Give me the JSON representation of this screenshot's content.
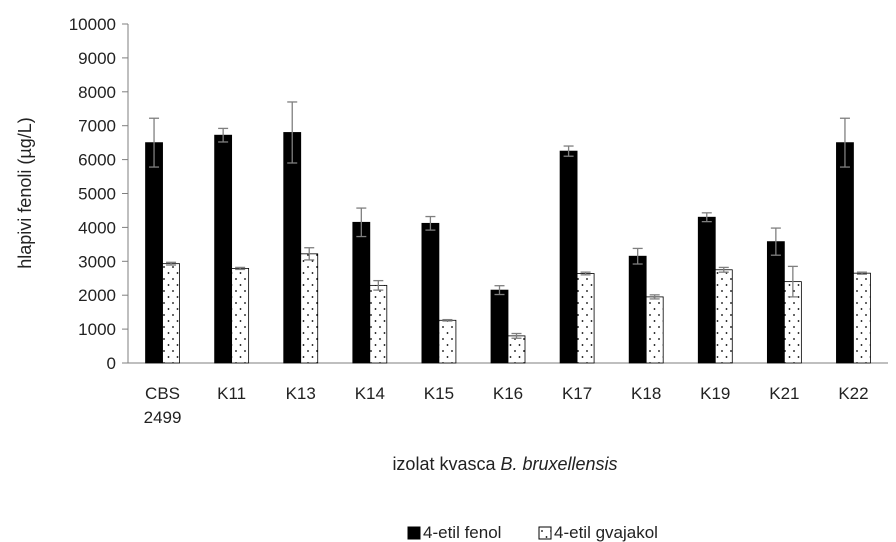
{
  "chart_data": {
    "type": "bar",
    "title": "",
    "ylabel": "hlapivi fenoli (µg/L)",
    "xlabel_prefix": "izolat kvasca ",
    "xlabel_italic": "B. bruxellensis",
    "categories": [
      [
        "CBS",
        "2499"
      ],
      [
        "K11"
      ],
      [
        "K13"
      ],
      [
        "K14"
      ],
      [
        "K15"
      ],
      [
        "K16"
      ],
      [
        "K17"
      ],
      [
        "K18"
      ],
      [
        "K19"
      ],
      [
        "K21"
      ],
      [
        "K22"
      ]
    ],
    "ylim": [
      0,
      10000
    ],
    "yticks": [
      0,
      1000,
      2000,
      3000,
      4000,
      5000,
      6000,
      7000,
      8000,
      9000,
      10000
    ],
    "grid": false,
    "legend_position": "bottom-center",
    "series": [
      {
        "name": "4-etil fenol",
        "fill": "#000000",
        "pattern": "solid",
        "values": [
          6500,
          6720,
          6800,
          4150,
          4120,
          2150,
          6250,
          3150,
          4300,
          3580,
          6500
        ],
        "errors": [
          720,
          200,
          900,
          420,
          200,
          130,
          150,
          230,
          130,
          400,
          720
        ]
      },
      {
        "name": "4-etil gvajakol",
        "fill": "#ffffff",
        "pattern": "dotted",
        "values": [
          2930,
          2790,
          3220,
          2290,
          1260,
          800,
          2640,
          1950,
          2750,
          2400,
          2650
        ],
        "errors": [
          40,
          30,
          180,
          140,
          20,
          70,
          40,
          60,
          70,
          450,
          30
        ]
      }
    ]
  }
}
